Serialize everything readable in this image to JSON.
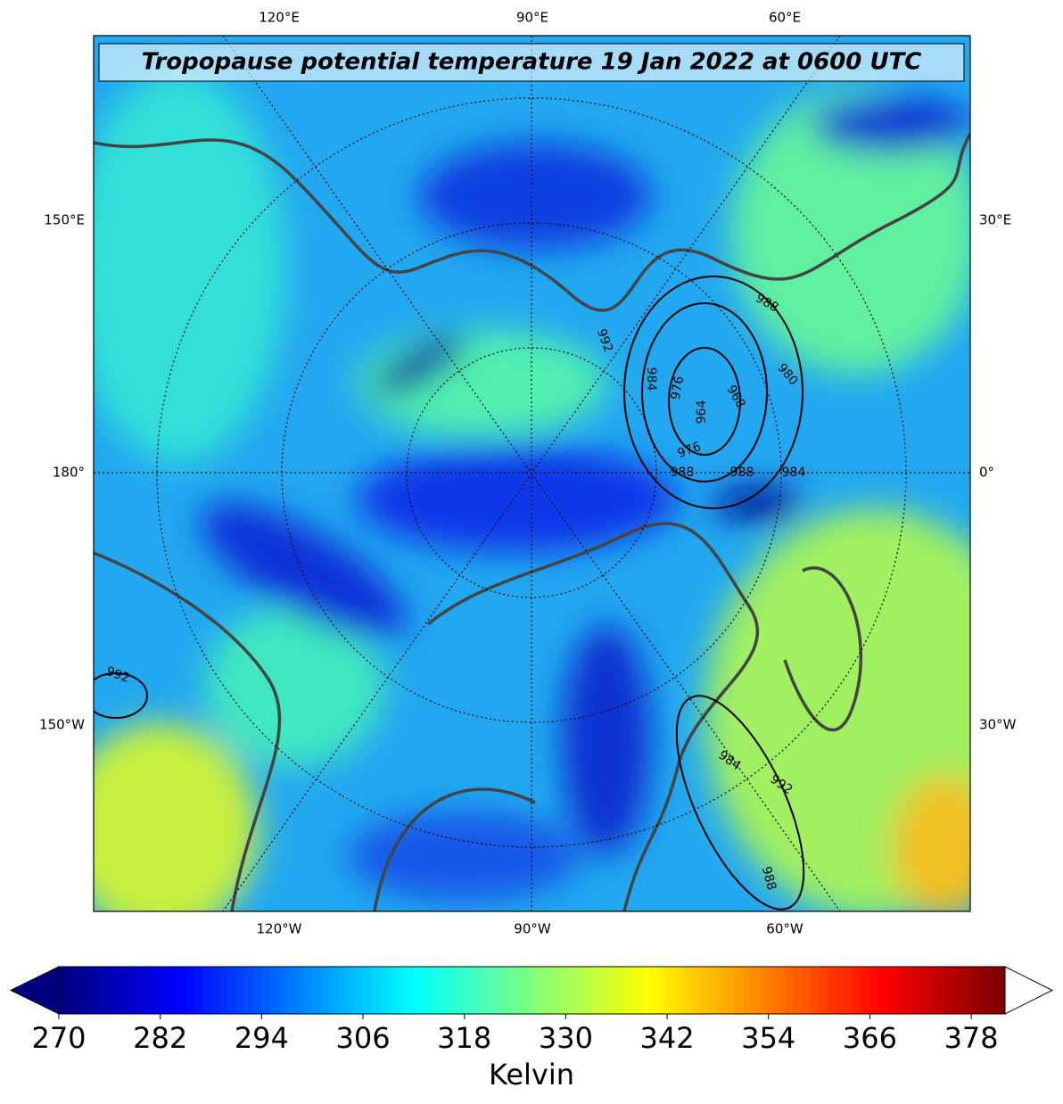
{
  "title": "Tropopause potential temperature 19 Jan 2022 at 0600 UTC",
  "map": {
    "top_labels": [
      "120°E",
      "90°E",
      "60°E"
    ],
    "bottom_labels": [
      "120°W",
      "90°W",
      "60°W"
    ],
    "left_labels": [
      "150°E",
      "180°",
      "150°W"
    ],
    "right_labels": [
      "30°E",
      "0°",
      "30°W"
    ],
    "contour_labels": [
      992,
      988,
      980,
      984,
      976,
      968,
      964,
      976,
      988,
      988,
      984,
      992,
      984,
      992,
      988
    ]
  },
  "colorbar": {
    "label": "Kelvin",
    "lim": [
      270,
      382
    ],
    "ticks": [
      270,
      282,
      294,
      306,
      318,
      330,
      342,
      354,
      366,
      378
    ],
    "colormap": [
      "#00007f",
      "#0000ff",
      "#007fff",
      "#00ffff",
      "#7fff7f",
      "#ffff00",
      "#ff7f00",
      "#ff0000",
      "#7f0000"
    ]
  }
}
